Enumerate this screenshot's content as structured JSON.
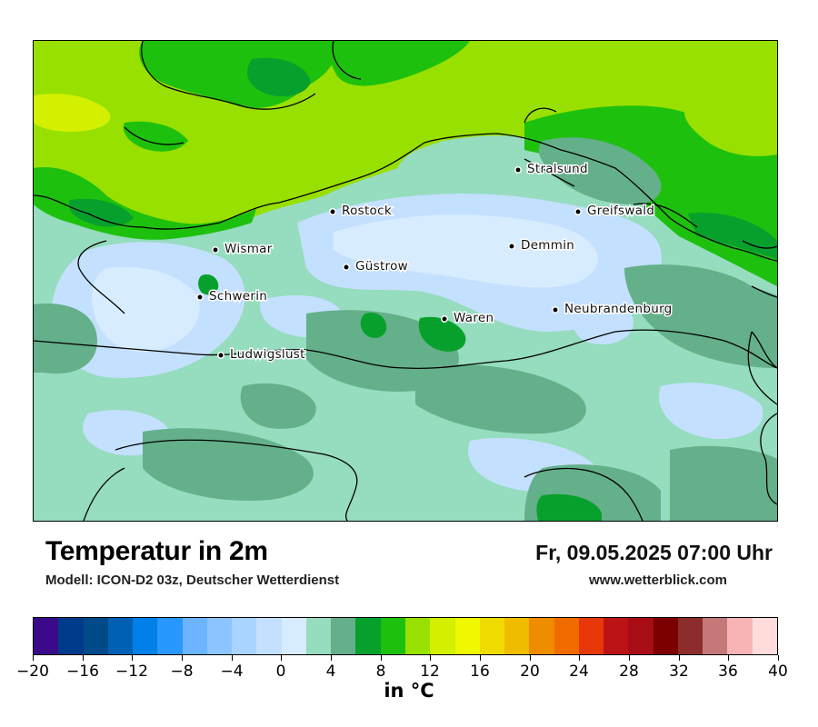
{
  "title": "Temperatur in 2m",
  "model": "Modell: ICON-D2 03z, Deutscher Wetterdienst",
  "datetime": "Fr, 09.05.2025 07:00 Uhr",
  "website": "www.wetterblick.com",
  "map": {
    "region": "Mecklenburg-Vorpommern",
    "cities": [
      {
        "name": "Stralsund"
      },
      {
        "name": "Rostock"
      },
      {
        "name": "Greifswald"
      },
      {
        "name": "Wismar"
      },
      {
        "name": "Demmin"
      },
      {
        "name": "Güstrow"
      },
      {
        "name": "Schwerin"
      },
      {
        "name": "Waren"
      },
      {
        "name": "Neubrandenburg"
      },
      {
        "name": "Ludwigslust"
      }
    ]
  },
  "colorbar": {
    "unit_label": "in °C",
    "min": -20,
    "max": 40,
    "step": 2,
    "tick_labels": [
      "−20",
      "−16",
      "−12",
      "−8",
      "−4",
      "0",
      "4",
      "8",
      "12",
      "16",
      "20",
      "24",
      "28",
      "32",
      "36",
      "40"
    ],
    "colors": [
      "#3a0a8a",
      "#003a8a",
      "#004a8a",
      "#0060b4",
      "#0080e8",
      "#2898ff",
      "#6cb4ff",
      "#8cc4ff",
      "#a8d4ff",
      "#c4e0ff",
      "#d8ecff",
      "#96dcbe",
      "#64b08a",
      "#08a02c",
      "#1ec00e",
      "#98e000",
      "#d2f000",
      "#f0f800",
      "#f0dc00",
      "#f0bc00",
      "#f08c00",
      "#f06c00",
      "#e83808",
      "#bc1414",
      "#a80c14",
      "#7c0000",
      "#8c2c2c",
      "#c47878",
      "#f8b4b4",
      "#ffdcdc"
    ]
  }
}
